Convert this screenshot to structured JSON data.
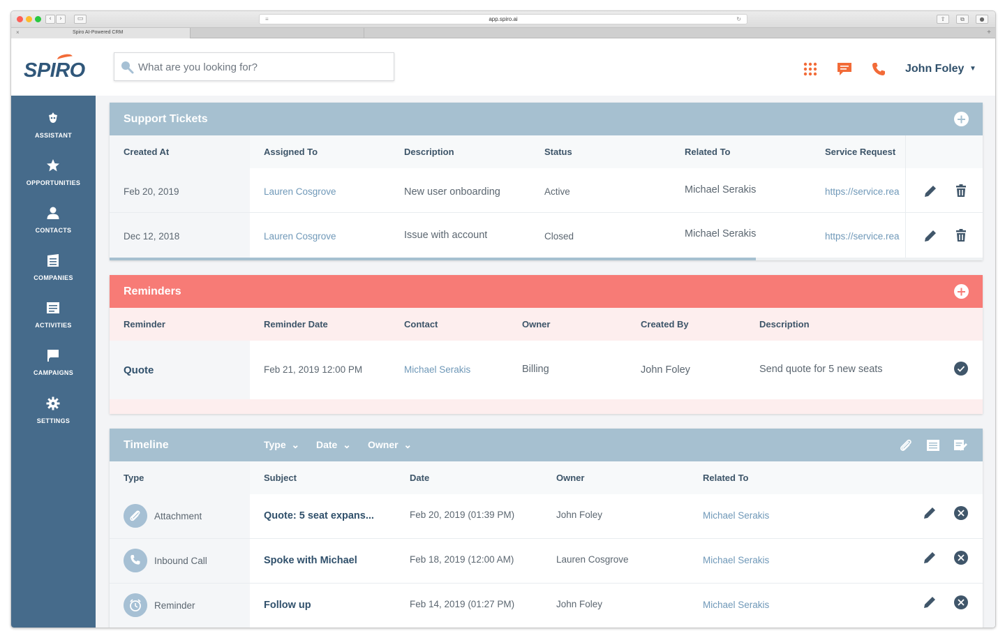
{
  "browser": {
    "url": "app.spiro.ai",
    "tab_title": "Spiro AI-Powered CRM"
  },
  "header": {
    "logo": "SPIRO",
    "search_placeholder": "What are you looking for?",
    "icons": [
      "apps-grid-icon",
      "chat-icon",
      "phone-icon"
    ],
    "user_name": "John Foley"
  },
  "sidebar": {
    "items": [
      {
        "label": "ASSISTANT",
        "icon": "assistant-icon"
      },
      {
        "label": "OPPORTUNITIES",
        "icon": "star-icon"
      },
      {
        "label": "CONTACTS",
        "icon": "person-icon"
      },
      {
        "label": "COMPANIES",
        "icon": "building-icon"
      },
      {
        "label": "ACTIVITIES",
        "icon": "list-icon"
      },
      {
        "label": "CAMPAIGNS",
        "icon": "flag-icon"
      },
      {
        "label": "SETTINGS",
        "icon": "gear-icon"
      }
    ]
  },
  "support": {
    "title": "Support Tickets",
    "columns": [
      "Created At",
      "Assigned To",
      "Description",
      "Status",
      "Related To",
      "Service Request"
    ],
    "rows": [
      {
        "created": "Feb 20, 2019",
        "assigned": "Lauren Cosgrove",
        "description": "New user onboarding",
        "status": "Active",
        "related": "Michael Serakis",
        "service": "https://service.rea"
      },
      {
        "created": "Dec 12, 2018",
        "assigned": "Lauren Cosgrove",
        "description": "Issue with account",
        "status": "Closed",
        "related": "Michael Serakis",
        "service": "https://service.rea"
      }
    ],
    "scroll_fraction": 0.74
  },
  "reminders": {
    "title": "Reminders",
    "columns": [
      "Reminder",
      "Reminder Date",
      "Contact",
      "Owner",
      "Created By",
      "Description"
    ],
    "rows": [
      {
        "reminder": "Quote",
        "date": "Feb 21, 2019 12:00 PM",
        "contact": "Michael Serakis",
        "owner": "Billing",
        "created_by": "John Foley",
        "description": "Send quote for 5 new seats"
      }
    ]
  },
  "timeline": {
    "title": "Timeline",
    "filters": [
      "Type",
      "Date",
      "Owner"
    ],
    "columns": [
      "Type",
      "Subject",
      "Date",
      "Owner",
      "Related To"
    ],
    "rows": [
      {
        "type": "Attachment",
        "icon": "paperclip-icon",
        "subject": "Quote: 5 seat expans...",
        "date": "Feb 20, 2019 (01:39 PM)",
        "owner": "John Foley",
        "related": "Michael Serakis"
      },
      {
        "type": "Inbound Call",
        "icon": "phone-icon",
        "subject": "Spoke with Michael",
        "date": "Feb 18, 2019 (12:00 AM)",
        "owner": "Lauren Cosgrove",
        "related": "Michael Serakis"
      },
      {
        "type": "Reminder",
        "icon": "bell-icon",
        "subject": "Follow up",
        "date": "Feb 14, 2019 (01:27 PM)",
        "owner": "John Foley",
        "related": "Michael Serakis"
      }
    ]
  },
  "colors": {
    "sidebar": "#466b8b",
    "panel_blue": "#a6c0d0",
    "reminder_red": "#f77b76",
    "accent_orange": "#f26b38"
  }
}
